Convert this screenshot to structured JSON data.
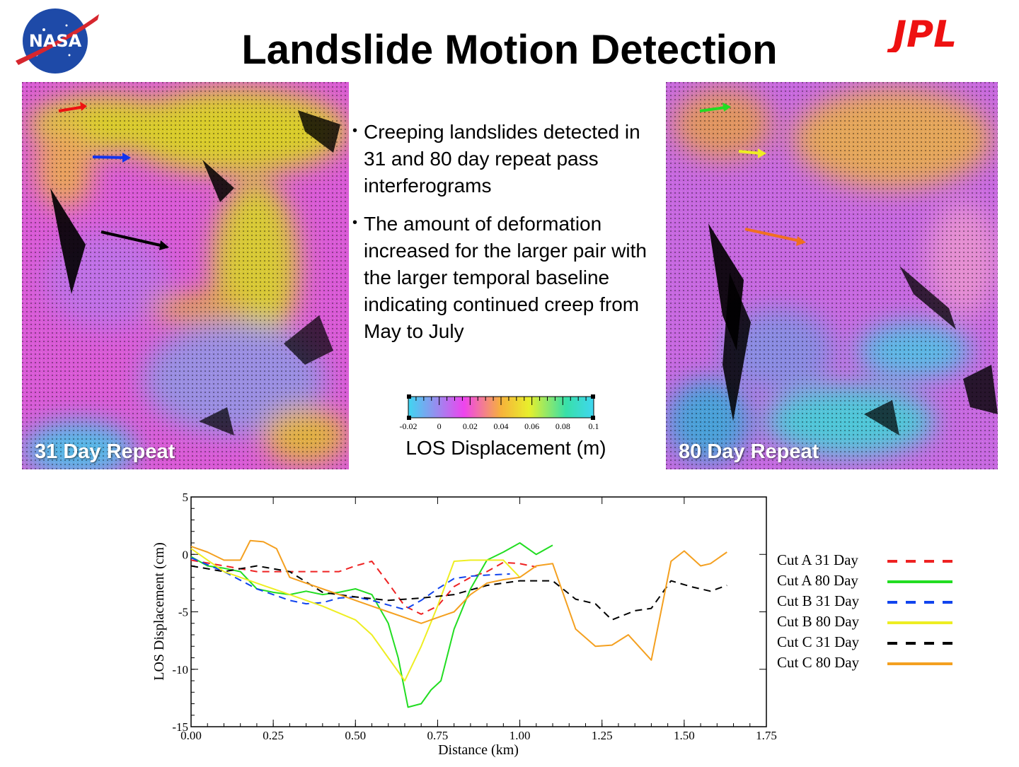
{
  "title": "Landslide Motion Detection",
  "logos": {
    "nasa": "NASA",
    "jpl": "JPL"
  },
  "panels": {
    "left_label": "31 Day Repeat",
    "right_label": "80 Day Repeat"
  },
  "bullets": [
    "Creeping landslides detected in 31 and 80 day repeat pass interferograms",
    "The amount of deformation increased for the larger pair with the larger temporal baseline indicating continued creep from May to July"
  ],
  "colorbar": {
    "ticks": [
      "-0.02",
      "0",
      "0.02",
      "0.04",
      "0.06",
      "0.08",
      "0.1"
    ],
    "caption": "LOS Displacement (m)",
    "colors": [
      "#3fd6f0",
      "#ee44ee",
      "#f7b23b",
      "#e8ef2c",
      "#38e0a8",
      "#3fd6f0"
    ]
  },
  "colors": {
    "cut_a_31": "#ee2222",
    "cut_a_80": "#22dd22",
    "cut_b_31": "#1144ee",
    "cut_b_80": "#eeee22",
    "cut_c_31": "#000000",
    "cut_c_80": "#f4a020"
  },
  "chart_data": {
    "type": "line",
    "xlabel": "Distance (km)",
    "ylabel": "LOS Displacement (cm)",
    "xlim": [
      0,
      1.75
    ],
    "ylim": [
      -15,
      5
    ],
    "xticks": [
      "0.00",
      "0.25",
      "0.50",
      "0.75",
      "1.00",
      "1.25",
      "1.50",
      "1.75"
    ],
    "yticks": [
      "5",
      "0",
      "-5",
      "-10",
      "-15"
    ],
    "legend_position": "right",
    "series": [
      {
        "name": "Cut A 31 Day",
        "dashed": true,
        "color": "#ee2222",
        "x": [
          0.0,
          0.1,
          0.2,
          0.3,
          0.4,
          0.45,
          0.5,
          0.55,
          0.6,
          0.65,
          0.7,
          0.75,
          0.8,
          0.85,
          0.9,
          0.95,
          1.0,
          1.05
        ],
        "y": [
          -0.5,
          -1.0,
          -1.5,
          -1.5,
          -1.5,
          -1.5,
          -1.0,
          -0.6,
          -2.5,
          -4.5,
          -5.2,
          -4.5,
          -2.8,
          -2.0,
          -1.5,
          -0.7,
          -0.8,
          -1.1
        ]
      },
      {
        "name": "Cut A 80 Day",
        "dashed": false,
        "color": "#22dd22",
        "x": [
          0.0,
          0.05,
          0.1,
          0.15,
          0.2,
          0.25,
          0.3,
          0.35,
          0.4,
          0.45,
          0.5,
          0.55,
          0.6,
          0.63,
          0.66,
          0.7,
          0.73,
          0.76,
          0.8,
          0.85,
          0.9,
          0.95,
          1.0,
          1.05,
          1.1
        ],
        "y": [
          -0.2,
          -1.0,
          -1.2,
          -1.5,
          -3.0,
          -3.3,
          -3.5,
          -3.2,
          -3.5,
          -3.3,
          -3.0,
          -3.5,
          -6.0,
          -9.0,
          -13.3,
          -13.0,
          -11.8,
          -11.0,
          -6.5,
          -3.0,
          -0.5,
          0.2,
          1.0,
          0.0,
          0.8
        ]
      },
      {
        "name": "Cut B 31 Day",
        "dashed": true,
        "color": "#1144ee",
        "x": [
          0.0,
          0.1,
          0.2,
          0.3,
          0.35,
          0.4,
          0.45,
          0.5,
          0.55,
          0.6,
          0.65,
          0.7,
          0.75,
          0.8,
          0.85,
          0.9,
          0.97
        ],
        "y": [
          -0.3,
          -1.5,
          -3.0,
          -4.0,
          -4.3,
          -4.2,
          -3.8,
          -3.7,
          -4.0,
          -4.4,
          -4.8,
          -4.0,
          -3.0,
          -2.1,
          -1.9,
          -1.8,
          -1.7
        ]
      },
      {
        "name": "Cut B 80 Day",
        "dashed": false,
        "color": "#eeee22",
        "x": [
          0.0,
          0.1,
          0.2,
          0.3,
          0.4,
          0.5,
          0.55,
          0.6,
          0.65,
          0.7,
          0.75,
          0.8,
          0.85,
          0.9,
          0.95,
          1.0
        ],
        "y": [
          0.5,
          -1.5,
          -2.5,
          -3.5,
          -4.5,
          -5.7,
          -7.0,
          -9.0,
          -11.0,
          -8.0,
          -4.5,
          -0.6,
          -0.5,
          -0.5,
          -0.5,
          -2.0
        ]
      },
      {
        "name": "Cut C 31 Day",
        "dashed": true,
        "color": "#000000",
        "x": [
          0.0,
          0.1,
          0.2,
          0.3,
          0.4,
          0.5,
          0.6,
          0.7,
          0.8,
          0.9,
          1.0,
          1.1,
          1.17,
          1.23,
          1.28,
          1.35,
          1.4,
          1.46,
          1.52,
          1.58,
          1.63
        ],
        "y": [
          -1.0,
          -1.5,
          -1.0,
          -1.5,
          -3.3,
          -3.7,
          -4.0,
          -3.8,
          -3.5,
          -2.7,
          -2.3,
          -2.3,
          -3.9,
          -4.3,
          -5.7,
          -4.9,
          -4.7,
          -2.3,
          -2.8,
          -3.2,
          -2.7
        ]
      },
      {
        "name": "Cut C 80 Day",
        "dashed": false,
        "color": "#f4a020",
        "x": [
          0.0,
          0.05,
          0.1,
          0.15,
          0.18,
          0.22,
          0.26,
          0.3,
          0.35,
          0.4,
          0.45,
          0.5,
          0.55,
          0.6,
          0.65,
          0.7,
          0.75,
          0.8,
          0.85,
          0.9,
          0.95,
          1.0,
          1.05,
          1.1,
          1.17,
          1.23,
          1.28,
          1.33,
          1.4,
          1.46,
          1.5,
          1.55,
          1.58,
          1.63
        ],
        "y": [
          0.7,
          0.2,
          -0.5,
          -0.5,
          1.2,
          1.1,
          0.5,
          -2.0,
          -2.5,
          -3.0,
          -3.5,
          -4.0,
          -4.5,
          -5.0,
          -5.5,
          -6.0,
          -5.5,
          -5.0,
          -3.5,
          -2.5,
          -2.2,
          -2.0,
          -1.0,
          -0.8,
          -6.5,
          -8.0,
          -7.9,
          -7.0,
          -9.2,
          -0.6,
          0.3,
          -1.0,
          -0.8,
          0.2
        ]
      }
    ]
  }
}
